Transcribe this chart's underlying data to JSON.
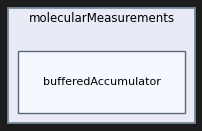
{
  "outer_label": "molecularMeasurements",
  "inner_label": "bufferedAccumulator",
  "fig_bg": "#1c1c1c",
  "outer_bg": "#e8eaf6",
  "outer_border": "#7a8a9a",
  "inner_bg": "#f5f8ff",
  "inner_border": "#5a6a7a",
  "label_fontsize": 8.5,
  "inner_fontsize": 8.0,
  "fig_width": 2.03,
  "fig_height": 1.31,
  "dpi": 100
}
